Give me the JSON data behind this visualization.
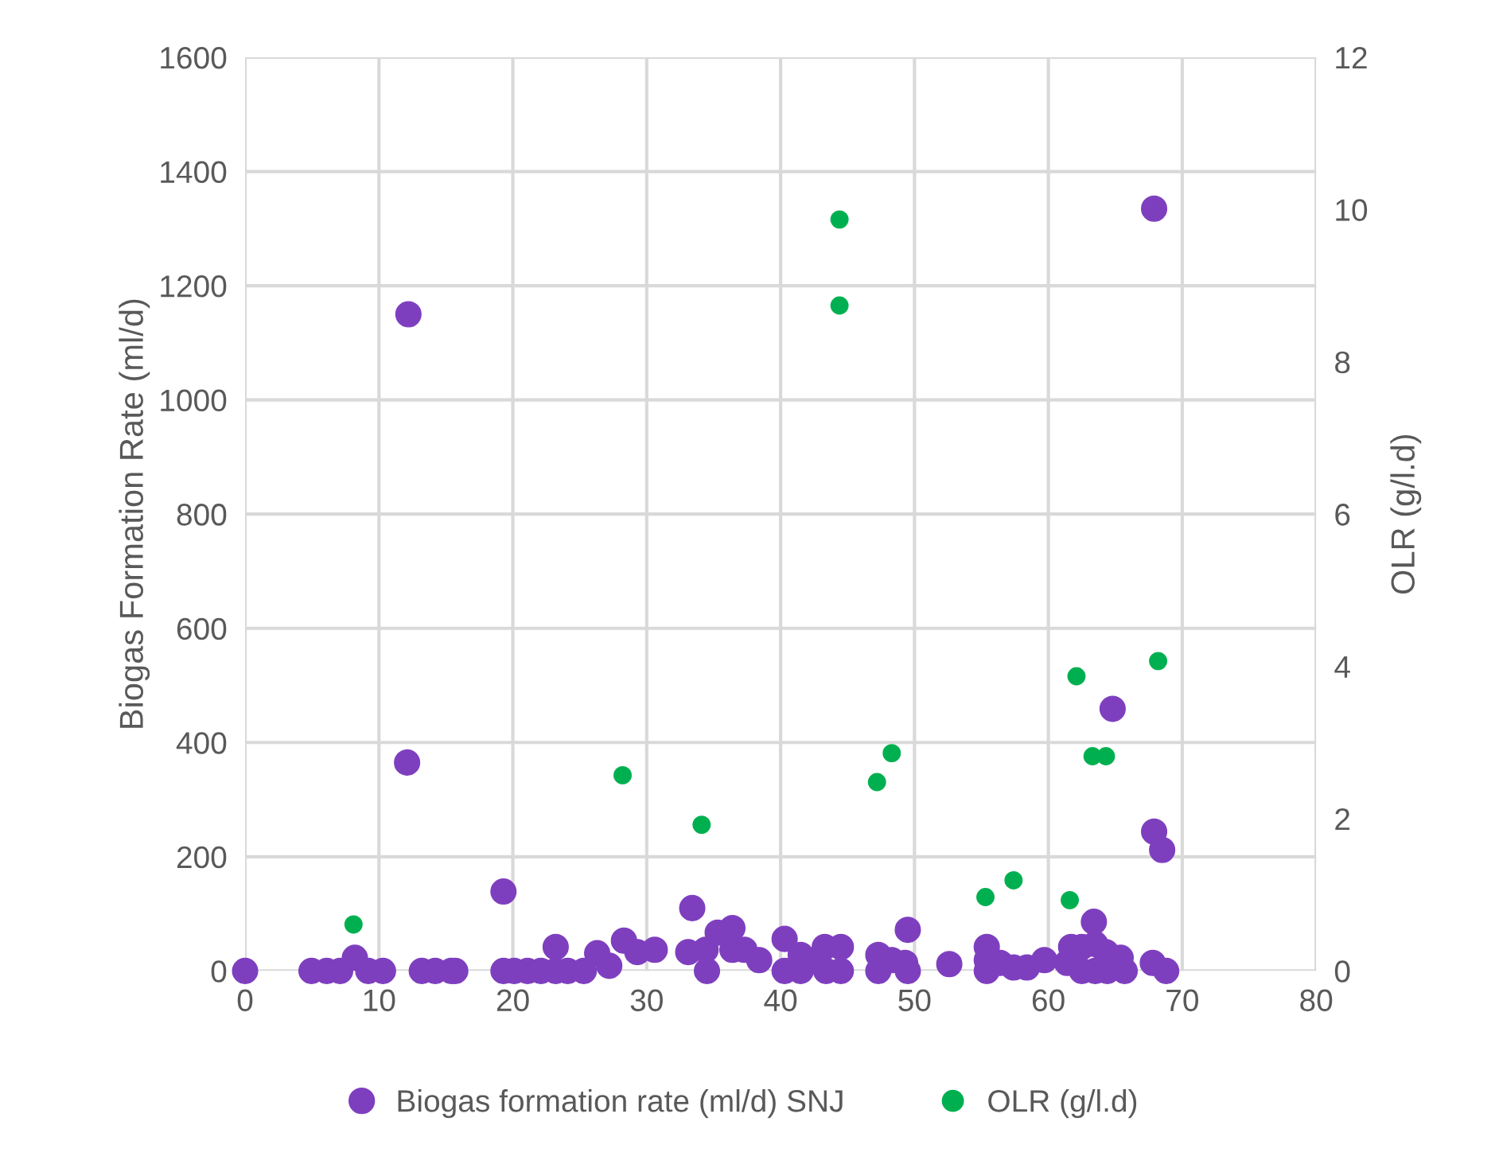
{
  "chart_data": {
    "type": "scatter",
    "ylabel": "Biogas Formation Rate (ml/d)",
    "y2label": "OLR (g/l.d)",
    "xlim": [
      0,
      80
    ],
    "xticks": [
      0,
      10,
      20,
      30,
      40,
      50,
      60,
      70,
      80
    ],
    "ylim": [
      0,
      1600
    ],
    "yticks": [
      0,
      200,
      400,
      600,
      800,
      1000,
      1200,
      1400,
      1600
    ],
    "y2lim": [
      0,
      12
    ],
    "y2ticks": [
      0,
      2,
      4,
      6,
      8,
      10,
      12
    ],
    "grid": true,
    "legend": "bottom",
    "marker": "circle",
    "series": [
      {
        "name": "Biogas formation rate (ml/d) SNJ",
        "color": "#7e3fbf",
        "x": [
          0,
          4.96,
          6.1,
          7.1,
          8.2,
          9.2,
          10.3,
          12.1,
          12.2,
          13.2,
          14.2,
          15.4,
          15.7,
          19.3,
          19.3,
          20.1,
          21.1,
          22.1,
          23.2,
          23.2,
          24.1,
          25.3,
          26.3,
          27.2,
          28.3,
          29.3,
          30.6,
          33.1,
          33.4,
          34.5,
          34.4,
          35.3,
          36.4,
          36.4,
          37.3,
          38.4,
          40.3,
          40.3,
          41.5,
          41.5,
          42.5,
          43.3,
          43.4,
          44.5,
          44.5,
          47.3,
          47.3,
          48.3,
          49.3,
          49.5,
          49.5,
          52.6,
          55.4,
          55.4,
          55.4,
          56.4,
          57.4,
          58.4,
          59.7,
          61.4,
          61.7,
          62.5,
          62.5,
          63.4,
          63.5,
          63.5,
          64.3,
          64.4,
          64.8,
          65.4,
          65.7,
          67.8,
          67.9,
          67.9,
          68.5,
          68.8
        ],
        "values": [
          0,
          0,
          0,
          0,
          23,
          0,
          0,
          365,
          1150,
          0,
          0,
          0,
          0,
          139,
          0,
          0,
          0,
          0,
          42,
          0,
          0,
          0,
          31,
          9,
          53,
          33,
          37,
          33,
          110,
          0,
          37,
          67,
          75,
          37,
          37,
          19,
          56,
          0,
          28,
          0,
          19,
          42,
          0,
          42,
          0,
          28,
          0,
          19,
          14,
          72,
          0,
          12,
          42,
          0,
          19,
          14,
          6,
          6,
          19,
          14,
          42,
          42,
          0,
          86,
          47,
          0,
          33,
          0,
          459,
          23,
          0,
          14,
          244,
          1335,
          212,
          0
        ]
      },
      {
        "name": "OLR (g/l.d)",
        "color": "#00b050",
        "axis": "y2",
        "x": [
          8.1,
          28.2,
          34.1,
          44.4,
          44.4,
          47.2,
          48.3,
          55.3,
          57.4,
          61.6,
          62.1,
          63.3,
          64.3,
          68.2
        ],
        "values": [
          0.61,
          2.57,
          1.92,
          9.87,
          8.74,
          2.48,
          2.86,
          0.97,
          1.19,
          0.93,
          3.87,
          2.82,
          2.82,
          4.07
        ]
      }
    ]
  }
}
